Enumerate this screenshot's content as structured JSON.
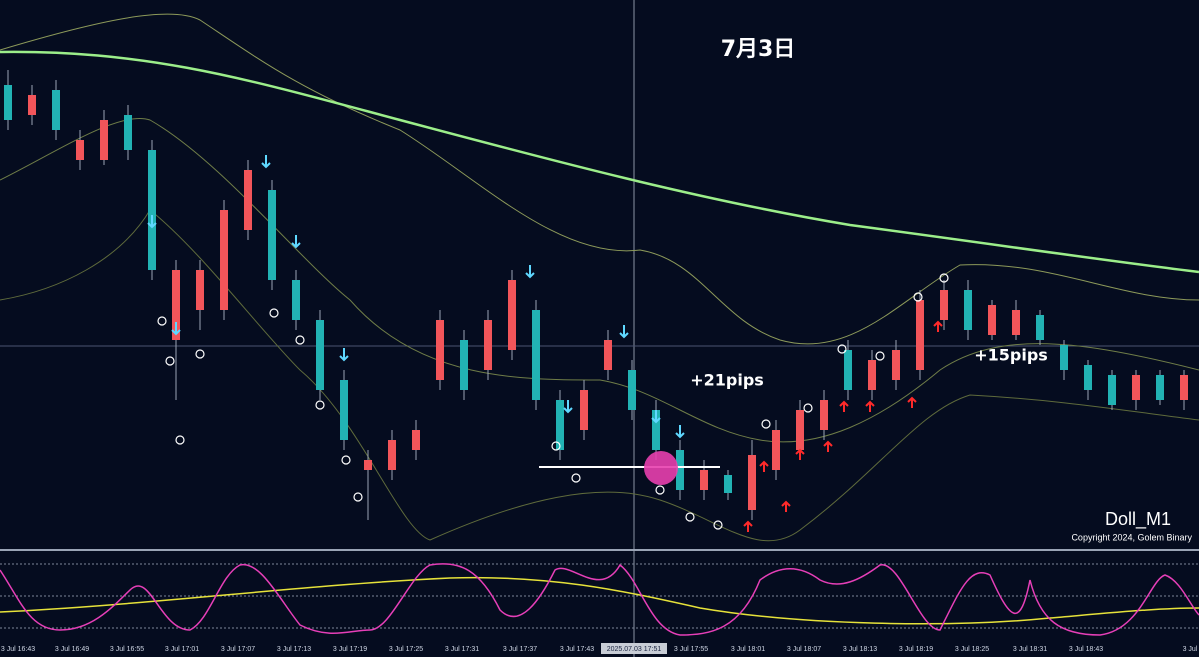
{
  "date_label": "7月3日",
  "annotations": [
    "+21pips",
    "+15pips"
  ],
  "chart_name": "Doll_M1",
  "copyright": "Copyright 2024, Golem Binary",
  "time_axis": [
    "3 Jul 16:43",
    "3 Jul 16:49",
    "3 Jul 16:55",
    "3 Jul 17:01",
    "3 Jul 17:07",
    "3 Jul 17:13",
    "3 Jul 17:19",
    "3 Jul 17:25",
    "3 Jul 17:31",
    "3 Jul 17:37",
    "3 Jul 17:43",
    "2025.07.03 17:51",
    "3 Jul 17:55",
    "3 Jul 18:01",
    "3 Jul 18:07",
    "3 Jul 18:13",
    "3 Jul 18:19",
    "3 Jul 18:25",
    "3 Jul 18:31",
    "3 Jul 18:43",
    "3 Jul"
  ]
}
